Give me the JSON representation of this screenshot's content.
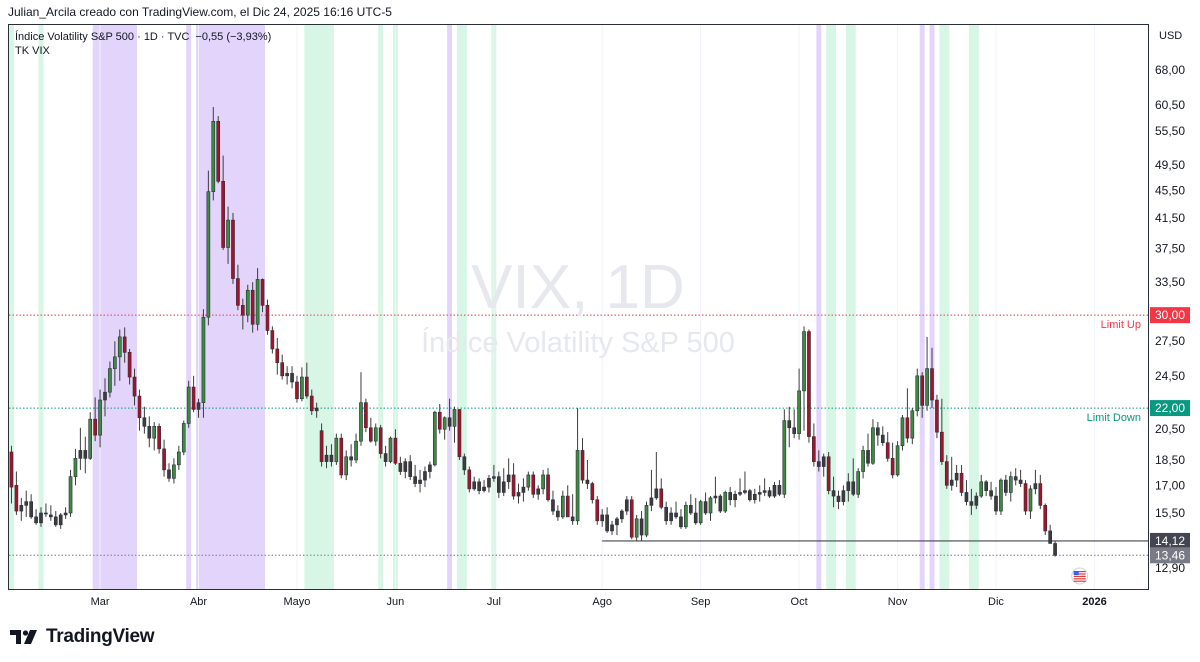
{
  "header": {
    "credit": "Julian_Arcila creado con TradingView.com, el Dic 24, 2025 16:16 UTC-5"
  },
  "legend": {
    "symbol": "Índice Volatility S&P 500 · 1D · TVC",
    "change": "−0,55 (−3,93%)",
    "indicator": "TK VIX"
  },
  "watermark": {
    "line1": "VIX, 1D",
    "line2": "Índice Volatility S&P 500"
  },
  "axis": {
    "currency": "USD"
  },
  "brand": {
    "name": "TradingView",
    "icon": "tradingview-logo-icon"
  },
  "colors": {
    "up": "#3d8b40",
    "down": "#a3142a",
    "neutral": "#3c3c3c",
    "purple_band": "#e2d4fb",
    "green_band": "#d7f6e6",
    "limit_up": "#f23645",
    "limit_down": "#089981",
    "last_price": "#434651"
  },
  "chart_data": {
    "type": "candlestick",
    "title": "Índice Volatility S&P 500",
    "ylabel": "USD",
    "scale": "log",
    "ylim": [
      12.0,
      72.0
    ],
    "y_ticks": [
      "68,00",
      "60,50",
      "55,50",
      "49,50",
      "45,50",
      "41,50",
      "37,50",
      "33,50",
      "27,50",
      "24,50",
      "20,50",
      "18,50",
      "17,00",
      "15,50",
      "12,90"
    ],
    "y_tick_values": [
      68,
      60.5,
      55.5,
      49.5,
      45.5,
      41.5,
      37.5,
      33.5,
      27.5,
      24.5,
      20.5,
      18.5,
      17,
      15.5,
      12.9
    ],
    "x_labels": [
      "Mar",
      "Abr",
      "Mayo",
      "Jun",
      "Jul",
      "Ago",
      "Sep",
      "Oct",
      "Nov",
      "Dic",
      "2026"
    ],
    "x_label_bars": [
      18,
      38,
      58,
      78,
      98,
      120,
      140,
      160,
      180,
      200,
      220
    ],
    "horizontal_lines": [
      {
        "label": "Limit Up",
        "value": 30.0,
        "tag": "30,00",
        "style": "dotted",
        "color": "#f23645"
      },
      {
        "label": "Limit Down",
        "value": 22.0,
        "tag": "22,00",
        "style": "dotted",
        "color": "#089981"
      },
      {
        "label": "",
        "value": 14.12,
        "tag": "14,12",
        "style": "solid",
        "color": "#434651"
      }
    ],
    "last_price": {
      "value": 13.46,
      "tag": "13,46"
    },
    "bands_purple": [
      [
        17,
        26
      ],
      [
        36,
        37
      ],
      [
        38,
        52
      ],
      [
        164,
        165
      ],
      [
        185,
        186
      ],
      [
        187,
        188
      ],
      [
        89,
        90
      ]
    ],
    "bands_green": [
      [
        0,
        1
      ],
      [
        6,
        7
      ],
      [
        60,
        66
      ],
      [
        75,
        76
      ],
      [
        78,
        79
      ],
      [
        91,
        93
      ],
      [
        98,
        99
      ],
      [
        166,
        168
      ],
      [
        170,
        172
      ],
      [
        189,
        191
      ],
      [
        195,
        197
      ]
    ],
    "candles": [
      [
        19.0,
        19.4,
        16.0,
        16.9
      ],
      [
        17.0,
        17.8,
        15.4,
        15.6
      ],
      [
        15.6,
        16.3,
        15.1,
        15.9
      ],
      [
        15.9,
        16.7,
        15.3,
        16.1
      ],
      [
        16.1,
        16.5,
        15.2,
        15.3
      ],
      [
        15.3,
        15.7,
        14.9,
        15.0
      ],
      [
        15.0,
        15.8,
        14.8,
        15.5
      ],
      [
        15.5,
        16.0,
        15.3,
        15.5
      ],
      [
        15.4,
        15.9,
        15.1,
        15.3
      ],
      [
        15.3,
        15.6,
        14.8,
        14.9
      ],
      [
        14.9,
        15.5,
        14.7,
        15.4
      ],
      [
        15.4,
        15.8,
        15.2,
        15.5
      ],
      [
        15.5,
        17.9,
        15.3,
        17.5
      ],
      [
        17.5,
        19.2,
        17.0,
        18.6
      ],
      [
        18.6,
        20.6,
        17.9,
        19.1
      ],
      [
        19.1,
        20.0,
        17.7,
        18.6
      ],
      [
        18.6,
        21.7,
        18.5,
        21.2
      ],
      [
        21.2,
        22.8,
        19.7,
        20.1
      ],
      [
        20.1,
        23.4,
        19.3,
        22.6
      ],
      [
        22.6,
        24.3,
        21.4,
        23.2
      ],
      [
        23.2,
        25.7,
        22.8,
        25.1
      ],
      [
        25.1,
        27.5,
        23.7,
        26.1
      ],
      [
        26.1,
        28.6,
        24.1,
        27.9
      ],
      [
        27.9,
        28.8,
        25.6,
        26.5
      ],
      [
        26.5,
        26.8,
        23.8,
        24.4
      ],
      [
        24.4,
        25.1,
        22.2,
        22.9
      ],
      [
        22.9,
        23.4,
        20.4,
        21.3
      ],
      [
        21.3,
        22.1,
        20.2,
        20.7
      ],
      [
        20.7,
        21.4,
        19.3,
        19.9
      ],
      [
        19.9,
        21.0,
        19.1,
        20.7
      ],
      [
        20.7,
        20.9,
        18.9,
        19.2
      ],
      [
        19.2,
        19.8,
        17.5,
        17.9
      ],
      [
        17.9,
        18.3,
        17.2,
        17.4
      ],
      [
        17.4,
        18.6,
        17.1,
        18.2
      ],
      [
        18.2,
        19.4,
        17.9,
        19.0
      ],
      [
        19.0,
        21.1,
        18.8,
        20.9
      ],
      [
        20.9,
        24.1,
        20.6,
        23.6
      ],
      [
        23.6,
        24.5,
        21.7,
        21.9
      ],
      [
        21.9,
        22.7,
        21.3,
        22.4
      ],
      [
        22.4,
        30.6,
        21.3,
        29.8
      ],
      [
        29.8,
        48.6,
        29.0,
        45.3
      ],
      [
        45.3,
        60.1,
        44.0,
        57.3
      ],
      [
        57.3,
        58.3,
        46.6,
        46.9
      ],
      [
        46.9,
        51.1,
        37.3,
        37.6
      ],
      [
        37.6,
        43.1,
        35.6,
        41.2
      ],
      [
        41.2,
        42.2,
        33.3,
        33.9
      ],
      [
        33.9,
        35.5,
        30.5,
        31.0
      ],
      [
        31.0,
        31.7,
        28.6,
        30.0
      ],
      [
        30.0,
        33.2,
        29.3,
        32.6
      ],
      [
        32.6,
        33.5,
        28.3,
        29.1
      ],
      [
        29.1,
        35.1,
        28.5,
        33.8
      ],
      [
        33.8,
        33.9,
        30.3,
        31.0
      ],
      [
        31.0,
        31.6,
        28.1,
        28.5
      ],
      [
        28.5,
        28.9,
        26.4,
        26.8
      ],
      [
        26.8,
        27.8,
        24.6,
        25.6
      ],
      [
        25.6,
        26.3,
        24.2,
        24.5
      ],
      [
        24.5,
        25.3,
        23.8,
        24.7
      ],
      [
        24.7,
        25.3,
        23.5,
        24.0
      ],
      [
        24.0,
        24.5,
        22.4,
        22.7
      ],
      [
        22.7,
        25.2,
        22.5,
        24.4
      ],
      [
        24.4,
        25.6,
        22.7,
        22.9
      ],
      [
        22.9,
        23.4,
        21.5,
        21.8
      ],
      [
        21.8,
        22.4,
        21.3,
        22.0
      ],
      [
        20.4,
        20.9,
        18.1,
        18.4
      ],
      [
        18.4,
        19.4,
        18.0,
        18.8
      ],
      [
        18.8,
        19.5,
        18.1,
        18.4
      ],
      [
        18.4,
        20.2,
        18.2,
        19.9
      ],
      [
        19.9,
        20.2,
        17.4,
        17.6
      ],
      [
        17.6,
        19.1,
        17.3,
        18.7
      ],
      [
        18.7,
        19.5,
        18.1,
        18.5
      ],
      [
        18.5,
        20.2,
        18.3,
        19.7
      ],
      [
        19.7,
        24.8,
        19.4,
        22.4
      ],
      [
        22.4,
        22.7,
        20.3,
        20.6
      ],
      [
        20.6,
        21.3,
        19.6,
        19.7
      ],
      [
        19.7,
        20.9,
        19.4,
        20.6
      ],
      [
        20.6,
        20.8,
        18.6,
        18.9
      ],
      [
        18.9,
        19.4,
        18.1,
        18.4
      ],
      [
        18.4,
        20.0,
        18.3,
        19.9
      ],
      [
        19.9,
        20.5,
        18.2,
        18.3
      ],
      [
        18.3,
        18.7,
        17.6,
        17.8
      ],
      [
        17.8,
        18.6,
        17.4,
        18.4
      ],
      [
        18.4,
        18.8,
        17.3,
        17.5
      ],
      [
        17.5,
        18.2,
        16.9,
        17.1
      ],
      [
        17.1,
        17.9,
        16.6,
        17.3
      ],
      [
        17.3,
        18.1,
        16.9,
        17.8
      ],
      [
        17.8,
        18.4,
        17.4,
        18.2
      ],
      [
        18.2,
        21.8,
        18.1,
        21.7
      ],
      [
        21.7,
        22.3,
        20.2,
        20.5
      ],
      [
        20.5,
        21.4,
        19.8,
        21.3
      ],
      [
        21.3,
        22.7,
        20.4,
        20.7
      ],
      [
        20.7,
        22.1,
        19.6,
        21.9
      ],
      [
        21.9,
        21.9,
        18.5,
        18.7
      ],
      [
        18.7,
        18.9,
        17.6,
        17.9
      ],
      [
        17.9,
        18.1,
        16.6,
        16.8
      ],
      [
        16.8,
        17.5,
        16.7,
        17.2
      ],
      [
        17.2,
        17.4,
        16.5,
        16.7
      ],
      [
        16.7,
        17.3,
        16.6,
        16.9
      ],
      [
        16.9,
        17.6,
        16.6,
        17.4
      ],
      [
        17.4,
        18.2,
        17.2,
        17.5
      ],
      [
        17.5,
        17.8,
        16.3,
        16.6
      ],
      [
        16.6,
        18.0,
        16.4,
        17.2
      ],
      [
        17.2,
        18.6,
        16.8,
        17.6
      ],
      [
        17.6,
        18.3,
        16.2,
        16.4
      ],
      [
        16.4,
        17.1,
        16.0,
        16.6
      ],
      [
        16.6,
        17.4,
        16.1,
        16.9
      ],
      [
        16.9,
        17.8,
        16.7,
        17.6
      ],
      [
        17.6,
        17.8,
        16.3,
        16.5
      ],
      [
        16.5,
        17.0,
        16.2,
        16.8
      ],
      [
        16.8,
        17.9,
        16.5,
        17.6
      ],
      [
        17.6,
        18.0,
        16.1,
        16.2
      ],
      [
        16.2,
        16.7,
        15.4,
        15.6
      ],
      [
        15.6,
        15.9,
        15.1,
        15.3
      ],
      [
        15.3,
        16.7,
        15.2,
        16.4
      ],
      [
        16.4,
        17.0,
        15.3,
        15.3
      ],
      [
        15.3,
        16.5,
        14.9,
        15.1
      ],
      [
        15.1,
        22.0,
        14.9,
        19.1
      ],
      [
        19.1,
        19.9,
        17.1,
        17.3
      ],
      [
        17.3,
        18.5,
        16.8,
        17.1
      ],
      [
        17.1,
        17.2,
        16.0,
        16.2
      ],
      [
        16.2,
        16.4,
        14.9,
        15.1
      ],
      [
        15.1,
        15.7,
        14.8,
        15.4
      ],
      [
        15.4,
        15.8,
        14.5,
        14.6
      ],
      [
        14.6,
        15.1,
        14.4,
        14.9
      ],
      [
        14.9,
        15.3,
        14.4,
        15.2
      ],
      [
        15.2,
        15.7,
        15.0,
        15.6
      ],
      [
        15.6,
        16.4,
        15.4,
        16.2
      ],
      [
        16.2,
        16.4,
        14.2,
        14.3
      ],
      [
        14.3,
        15.4,
        14.1,
        15.2
      ],
      [
        15.2,
        15.6,
        14.1,
        14.4
      ],
      [
        14.4,
        16.1,
        14.3,
        15.9
      ],
      [
        15.9,
        17.9,
        15.6,
        16.3
      ],
      [
        16.3,
        19.0,
        16.2,
        16.8
      ],
      [
        16.8,
        17.4,
        15.7,
        15.8
      ],
      [
        15.8,
        16.1,
        14.9,
        15.1
      ],
      [
        15.1,
        15.8,
        14.9,
        15.5
      ],
      [
        15.5,
        16.1,
        15.2,
        15.3
      ],
      [
        15.3,
        15.7,
        14.7,
        14.8
      ],
      [
        14.8,
        16.1,
        14.7,
        15.9
      ],
      [
        15.9,
        16.5,
        15.4,
        15.5
      ],
      [
        15.5,
        16.3,
        14.9,
        15.0
      ],
      [
        15.0,
        16.2,
        14.9,
        16.1
      ],
      [
        16.1,
        16.6,
        15.4,
        15.5
      ],
      [
        15.5,
        16.4,
        15.1,
        16.3
      ],
      [
        16.3,
        17.5,
        16.0,
        16.4
      ],
      [
        16.4,
        16.5,
        15.5,
        15.6
      ],
      [
        15.6,
        16.7,
        15.5,
        16.6
      ],
      [
        16.6,
        16.9,
        15.9,
        16.2
      ],
      [
        16.2,
        16.7,
        15.8,
        16.5
      ],
      [
        16.5,
        17.4,
        16.4,
        16.6
      ],
      [
        16.6,
        17.8,
        16.5,
        16.7
      ],
      [
        16.7,
        16.8,
        16.1,
        16.2
      ],
      [
        16.2,
        16.8,
        16.0,
        16.5
      ],
      [
        16.5,
        17.0,
        16.1,
        16.6
      ],
      [
        16.6,
        17.4,
        16.4,
        16.7
      ],
      [
        16.7,
        16.9,
        16.3,
        16.4
      ],
      [
        16.4,
        17.2,
        16.3,
        17.0
      ],
      [
        17.0,
        17.3,
        16.4,
        16.5
      ],
      [
        16.5,
        21.9,
        16.3,
        21.1
      ],
      [
        21.1,
        22.1,
        19.3,
        20.6
      ],
      [
        20.6,
        21.9,
        19.9,
        20.2
      ],
      [
        20.2,
        25.1,
        19.8,
        23.3
      ],
      [
        23.3,
        28.9,
        20.4,
        28.4
      ],
      [
        28.4,
        28.6,
        19.6,
        20.0
      ],
      [
        20.0,
        20.9,
        18.1,
        18.4
      ],
      [
        18.4,
        19.1,
        17.8,
        18.1
      ],
      [
        18.1,
        18.9,
        17.5,
        18.7
      ],
      [
        18.7,
        19.0,
        16.5,
        16.7
      ],
      [
        16.7,
        17.5,
        15.8,
        16.4
      ],
      [
        16.4,
        16.7,
        15.7,
        16.1
      ],
      [
        16.1,
        17.0,
        15.9,
        16.7
      ],
      [
        16.7,
        17.7,
        16.1,
        17.2
      ],
      [
        17.2,
        18.6,
        16.4,
        16.5
      ],
      [
        16.5,
        18.0,
        16.3,
        17.8
      ],
      [
        17.8,
        19.4,
        17.4,
        19.1
      ],
      [
        19.1,
        20.2,
        18.1,
        18.3
      ],
      [
        18.3,
        21.2,
        18.2,
        20.6
      ],
      [
        20.6,
        21.0,
        19.4,
        20.1
      ],
      [
        20.1,
        20.7,
        19.4,
        19.6
      ],
      [
        19.6,
        20.3,
        18.4,
        18.6
      ],
      [
        18.6,
        19.6,
        17.4,
        17.6
      ],
      [
        17.6,
        19.7,
        17.5,
        19.4
      ],
      [
        19.4,
        21.5,
        19.1,
        21.3
      ],
      [
        21.3,
        23.5,
        19.6,
        19.9
      ],
      [
        19.9,
        22.0,
        19.5,
        21.8
      ],
      [
        21.8,
        25.1,
        21.4,
        24.5
      ],
      [
        24.5,
        24.8,
        21.3,
        22.2
      ],
      [
        22.2,
        27.9,
        21.8,
        25.1
      ],
      [
        25.1,
        26.9,
        22.0,
        22.6
      ],
      [
        22.6,
        23.0,
        19.9,
        20.3
      ],
      [
        20.3,
        22.7,
        18.2,
        18.4
      ],
      [
        18.4,
        18.8,
        16.8,
        17.0
      ],
      [
        17.0,
        18.7,
        16.7,
        17.3
      ],
      [
        17.3,
        18.2,
        16.9,
        17.7
      ],
      [
        17.7,
        18.2,
        16.4,
        16.6
      ],
      [
        16.6,
        17.3,
        15.9,
        16.1
      ],
      [
        16.1,
        16.8,
        15.4,
        15.9
      ],
      [
        15.9,
        16.6,
        15.7,
        16.4
      ],
      [
        16.4,
        17.6,
        16.3,
        17.2
      ],
      [
        17.2,
        17.3,
        16.4,
        16.7
      ],
      [
        16.7,
        17.2,
        16.2,
        16.4
      ],
      [
        16.4,
        16.9,
        15.4,
        15.6
      ],
      [
        15.6,
        17.4,
        15.4,
        17.3
      ],
      [
        17.3,
        17.6,
        16.4,
        16.6
      ],
      [
        16.6,
        17.8,
        16.1,
        17.5
      ],
      [
        17.5,
        18.0,
        17.0,
        17.3
      ],
      [
        17.3,
        17.9,
        16.9,
        17.1
      ],
      [
        17.1,
        17.3,
        15.4,
        15.6
      ],
      [
        15.6,
        17.0,
        15.2,
        16.8
      ],
      [
        16.8,
        17.9,
        16.5,
        17.1
      ],
      [
        17.1,
        17.6,
        15.7,
        15.9
      ],
      [
        15.9,
        16.0,
        14.4,
        14.6
      ],
      [
        14.6,
        14.9,
        14.0,
        14.0
      ],
      [
        14.0,
        14.1,
        13.4,
        13.46
      ]
    ]
  }
}
